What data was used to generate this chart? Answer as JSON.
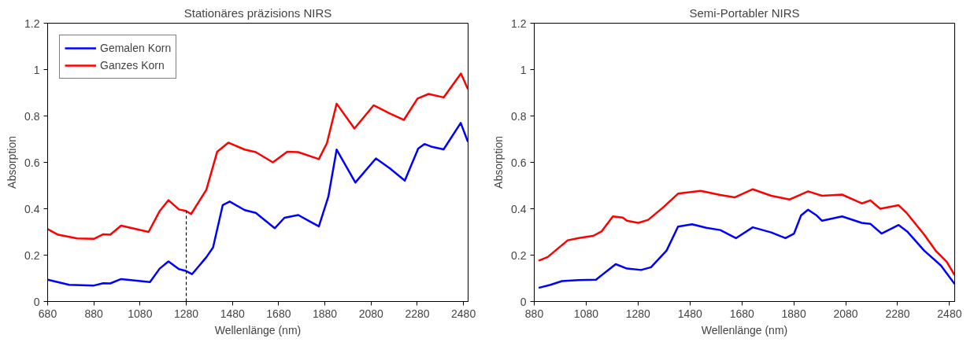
{
  "chart_data": [
    {
      "type": "line",
      "title": "Stationäres präzisions NIRS",
      "xlabel": "Wellenlänge (nm)",
      "ylabel": "Absorption",
      "xlim": [
        680,
        2500
      ],
      "xticks": [
        680,
        880,
        1080,
        1280,
        1480,
        1680,
        1880,
        2080,
        2280,
        2480
      ],
      "ylim": [
        0,
        1.2
      ],
      "yticks": [
        0,
        0.2,
        0.4,
        0.6,
        0.8,
        1,
        1.2
      ],
      "grid": false,
      "legend": "top left",
      "marker": "none",
      "line_style": "solid",
      "ref_lines": [
        {
          "axis": "x",
          "value": 1280,
          "color": "#000000",
          "line_style": "dashed"
        }
      ],
      "series": [
        {
          "name": "Gemalen Korn",
          "color": "#0000ff",
          "x": [
            680,
            773,
            880,
            921,
            951,
            998,
            1123,
            1165,
            1203,
            1248,
            1278,
            1305,
            1367,
            1396,
            1438,
            1468,
            1533,
            1581,
            1663,
            1705,
            1765,
            1813,
            1854,
            1895,
            1931,
            2012,
            2101,
            2163,
            2226,
            2284,
            2311,
            2340,
            2394,
            2468,
            2499
          ],
          "values": [
            0.094,
            0.072,
            0.069,
            0.079,
            0.078,
            0.097,
            0.084,
            0.142,
            0.173,
            0.14,
            0.132,
            0.118,
            0.191,
            0.233,
            0.416,
            0.431,
            0.394,
            0.382,
            0.316,
            0.361,
            0.373,
            0.346,
            0.324,
            0.452,
            0.655,
            0.513,
            0.617,
            0.573,
            0.521,
            0.659,
            0.679,
            0.668,
            0.656,
            0.77,
            0.689
          ]
        },
        {
          "name": "Ganzes Korn",
          "color": "#ff0000",
          "x": [
            680,
            725,
            808,
            880,
            921,
            951,
            998,
            1117,
            1165,
            1203,
            1248,
            1278,
            1301,
            1367,
            1414,
            1462,
            1533,
            1581,
            1655,
            1717,
            1765,
            1854,
            1889,
            1931,
            2008,
            2091,
            2163,
            2222,
            2281,
            2329,
            2394,
            2469,
            2499
          ],
          "values": [
            0.312,
            0.288,
            0.272,
            0.27,
            0.29,
            0.288,
            0.327,
            0.3,
            0.39,
            0.437,
            0.397,
            0.391,
            0.377,
            0.482,
            0.646,
            0.685,
            0.655,
            0.644,
            0.6,
            0.646,
            0.644,
            0.614,
            0.683,
            0.853,
            0.746,
            0.846,
            0.81,
            0.783,
            0.875,
            0.895,
            0.88,
            0.983,
            0.916
          ]
        }
      ]
    },
    {
      "type": "line",
      "title": "Semi-Portabler NIRS",
      "xlabel": "Wellenlänge (nm)",
      "ylabel": "Absorption",
      "xlim": [
        880,
        2500
      ],
      "xticks": [
        880,
        1080,
        1280,
        1480,
        1680,
        1880,
        2080,
        2280,
        2480
      ],
      "ylim": [
        0,
        1.2
      ],
      "yticks": [
        0,
        0.2,
        0.4,
        0.6,
        0.8,
        1,
        1.2
      ],
      "grid": false,
      "legend": false,
      "marker": "none",
      "line_style": "solid",
      "series": [
        {
          "color": "#0000ff",
          "x": [
            897,
            943,
            987,
            1052,
            1118,
            1161,
            1194,
            1237,
            1292,
            1330,
            1390,
            1434,
            1488,
            1543,
            1597,
            1657,
            1722,
            1793,
            1848,
            1881,
            1908,
            1935,
            1968,
            1989,
            2066,
            2142,
            2175,
            2218,
            2284,
            2317,
            2382,
            2447,
            2500
          ],
          "values": [
            0.059,
            0.072,
            0.088,
            0.092,
            0.094,
            0.132,
            0.161,
            0.142,
            0.136,
            0.148,
            0.22,
            0.323,
            0.333,
            0.318,
            0.308,
            0.273,
            0.32,
            0.298,
            0.273,
            0.293,
            0.371,
            0.396,
            0.371,
            0.348,
            0.367,
            0.339,
            0.335,
            0.293,
            0.33,
            0.302,
            0.22,
            0.155,
            0.075
          ]
        },
        {
          "color": "#ff0000",
          "x": [
            897,
            932,
            1009,
            1052,
            1107,
            1139,
            1183,
            1221,
            1237,
            1281,
            1319,
            1379,
            1434,
            1477,
            1521,
            1597,
            1652,
            1722,
            1793,
            1864,
            1935,
            1989,
            2066,
            2142,
            2175,
            2213,
            2284,
            2317,
            2382,
            2426,
            2469,
            2500
          ],
          "values": [
            0.176,
            0.192,
            0.264,
            0.274,
            0.283,
            0.302,
            0.367,
            0.362,
            0.348,
            0.339,
            0.352,
            0.408,
            0.465,
            0.471,
            0.477,
            0.459,
            0.449,
            0.484,
            0.456,
            0.44,
            0.475,
            0.456,
            0.461,
            0.423,
            0.436,
            0.4,
            0.415,
            0.379,
            0.289,
            0.22,
            0.172,
            0.113
          ]
        }
      ]
    }
  ]
}
